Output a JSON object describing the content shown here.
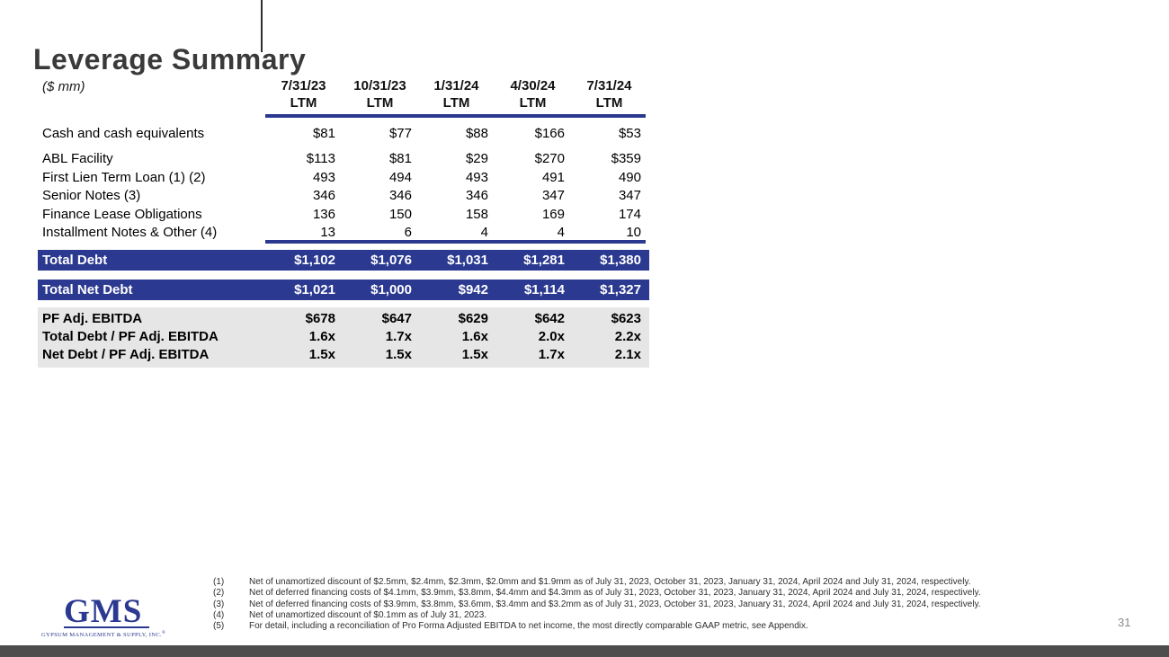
{
  "slide": {
    "title": "Leverage Summary",
    "units_label": "($ mm)",
    "page_number": "31"
  },
  "table": {
    "column_headers": [
      {
        "date": "7/31/23",
        "period": "LTM"
      },
      {
        "date": "10/31/23",
        "period": "LTM"
      },
      {
        "date": "1/31/24",
        "period": "LTM"
      },
      {
        "date": "4/30/24",
        "period": "LTM"
      },
      {
        "date": "7/31/24",
        "period": "LTM"
      }
    ],
    "rows": {
      "cash": {
        "label": "Cash and cash equivalents",
        "values": [
          "$81",
          "$77",
          "$88",
          "$166",
          "$53"
        ]
      },
      "debt": [
        {
          "label": "ABL Facility",
          "values": [
            "$113",
            "$81",
            "$29",
            "$270",
            "$359"
          ]
        },
        {
          "label": "First Lien Term Loan (1) (2)",
          "values": [
            "493",
            "494",
            "493",
            "491",
            "490"
          ]
        },
        {
          "label": "Senior Notes (3)",
          "values": [
            "346",
            "346",
            "346",
            "347",
            "347"
          ]
        },
        {
          "label": "Finance Lease Obligations",
          "values": [
            "136",
            "150",
            "158",
            "169",
            "174"
          ]
        },
        {
          "label": "Installment Notes & Other (4)",
          "values": [
            "13",
            "6",
            "4",
            "4",
            "10"
          ]
        }
      ],
      "total_debt": {
        "label": "Total Debt",
        "values": [
          "$1,102",
          "$1,076",
          "$1,031",
          "$1,281",
          "$1,380"
        ]
      },
      "total_net_debt": {
        "label": "Total Net Debt",
        "values": [
          "$1,021",
          "$1,000",
          "$942",
          "$1,114",
          "$1,327"
        ]
      },
      "metrics": [
        {
          "label": "PF Adj. EBITDA",
          "values": [
            "$678",
            "$647",
            "$629",
            "$642",
            "$623"
          ]
        },
        {
          "label": "Total Debt / PF Adj. EBITDA",
          "values": [
            "1.6x",
            "1.7x",
            "1.6x",
            "2.0x",
            "2.2x"
          ]
        },
        {
          "label": "Net Debt / PF Adj. EBITDA",
          "values": [
            "1.5x",
            "1.5x",
            "1.5x",
            "1.7x",
            "2.1x"
          ]
        }
      ]
    }
  },
  "footnotes": [
    {
      "num": "(1)",
      "text": "Net of unamortized discount of $2.5mm, $2.4mm, $2.3mm, $2.0mm and $1.9mm as of July 31, 2023, October 31, 2023, January 31, 2024, April 2024 and July 31, 2024, respectively."
    },
    {
      "num": "(2)",
      "text": "Net of deferred financing costs of $4.1mm, $3.9mm, $3.8mm, $4.4mm and $4.3mm as of July 31, 2023, October 31, 2023, January 31, 2024, April 2024 and July 31, 2024, respectively."
    },
    {
      "num": "(3)",
      "text": "Net of deferred financing costs of $3.9mm, $3.8mm, $3.6mm, $3.4mm and $3.2mm as of July 31, 2023, October 31, 2023, January 31, 2024, April 2024 and July 31, 2024, respectively."
    },
    {
      "num": "(4)",
      "text": "Net of unamortized discount of $0.1mm as of July 31, 2023."
    },
    {
      "num": "(5)",
      "text": "For detail, including a reconciliation of Pro Forma Adjusted EBITDA to net income, the most directly comparable GAAP metric, see Appendix."
    }
  ],
  "logo": {
    "name": "GMS",
    "tagline": "GYPSUM MANAGEMENT & SUPPLY, INC.",
    "registered_mark": "®"
  },
  "colors": {
    "navy": "#2B3990",
    "metrics_bg": "#E6E6E6",
    "footer_bar": "#4D4D4D"
  }
}
